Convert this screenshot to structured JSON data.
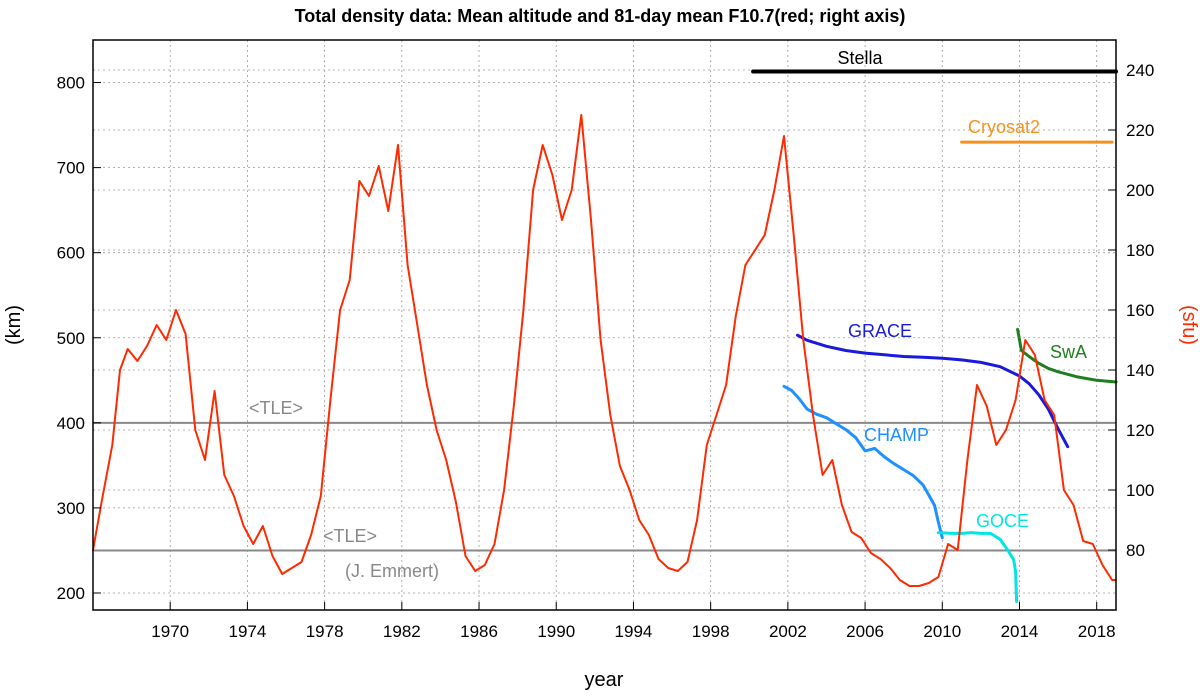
{
  "chart_data": {
    "type": "line",
    "title": "Total density data: Mean altitude and 81-day mean F10.7(red; right axis)",
    "xlabel": "year",
    "ylabel_left": "(km)",
    "ylabel_right": "(sfu)",
    "xlim": [
      1966,
      2019
    ],
    "ylim_left": [
      180,
      850
    ],
    "ylim_right": [
      60,
      250
    ],
    "grid": "dotted",
    "x_ticks": [
      1970,
      1974,
      1978,
      1982,
      1986,
      1990,
      1994,
      1998,
      2002,
      2006,
      2010,
      2014,
      2018
    ],
    "y_left_ticks": [
      200,
      300,
      400,
      500,
      600,
      700,
      800
    ],
    "y_right_ticks": [
      80,
      100,
      120,
      140,
      160,
      180,
      200,
      220,
      240
    ],
    "colors": {
      "f107": "#ff2a00",
      "tle": "#888888",
      "stella": "#000000",
      "cryosat2": "#f5921e",
      "grace": "#1a1adc",
      "champ": "#1e90ff",
      "goce": "#00e5e5",
      "swa": "#1f7f1f"
    },
    "reference_lines": [
      {
        "label": "<TLE>",
        "y": 400
      },
      {
        "label": "<TLE>",
        "sublabel": "(J. Emmert)",
        "y": 250
      }
    ],
    "series": [
      {
        "name": "Stella",
        "axis": "left",
        "x": [
          2000.2,
          2019
        ],
        "y": [
          813,
          813
        ]
      },
      {
        "name": "Cryosat2",
        "axis": "left",
        "x": [
          2011.0,
          2018.8
        ],
        "y": [
          730,
          730
        ]
      },
      {
        "name": "GRACE",
        "axis": "left",
        "x": [
          2002.5,
          2003.0,
          2004.0,
          2005.0,
          2006.0,
          2007.0,
          2008.0,
          2009.0,
          2010.0,
          2011.0,
          2012.0,
          2013.0,
          2014.0,
          2014.5,
          2015.0,
          2015.5,
          2016.0,
          2016.5
        ],
        "y": [
          503,
          497,
          490,
          485,
          482,
          480,
          478,
          477,
          476,
          474,
          471,
          466,
          455,
          446,
          433,
          416,
          393,
          372
        ]
      },
      {
        "name": "CHAMP",
        "axis": "left",
        "x": [
          2001.8,
          2002.2,
          2002.6,
          2003.0,
          2003.5,
          2004.0,
          2004.5,
          2005.0,
          2005.5,
          2006.0,
          2006.5,
          2007.0,
          2007.5,
          2008.0,
          2008.5,
          2009.0,
          2009.3,
          2009.6,
          2009.8,
          2010.0
        ],
        "y": [
          443,
          438,
          428,
          416,
          410,
          406,
          399,
          392,
          383,
          367,
          370,
          360,
          352,
          345,
          338,
          327,
          315,
          303,
          283,
          265
        ]
      },
      {
        "name": "GOCE",
        "axis": "left",
        "x": [
          2009.8,
          2010.5,
          2011.0,
          2011.5,
          2012.0,
          2012.5,
          2013.0,
          2013.4,
          2013.7,
          2013.8,
          2013.85
        ],
        "y": [
          271,
          270,
          270,
          271,
          270,
          270,
          263,
          250,
          239,
          225,
          190
        ]
      },
      {
        "name": "SwA",
        "axis": "left",
        "x": [
          2013.9,
          2014.1,
          2014.5,
          2015.0,
          2015.5,
          2016.0,
          2016.5,
          2017.0,
          2017.5,
          2018.0,
          2018.5,
          2019.0
        ],
        "y": [
          510,
          485,
          478,
          470,
          464,
          460,
          457,
          454,
          452,
          450,
          449,
          448
        ]
      },
      {
        "name": "F10.7",
        "axis": "right",
        "x": [
          1966.0,
          1966.5,
          1967.0,
          1967.4,
          1967.8,
          1968.3,
          1968.8,
          1969.3,
          1969.8,
          1970.3,
          1970.8,
          1971.3,
          1971.8,
          1972.3,
          1972.8,
          1973.3,
          1973.8,
          1974.3,
          1974.8,
          1975.3,
          1975.8,
          1976.3,
          1976.8,
          1977.3,
          1977.8,
          1978.3,
          1978.8,
          1979.3,
          1979.8,
          1980.3,
          1980.8,
          1981.3,
          1981.8,
          1982.3,
          1982.8,
          1983.3,
          1983.8,
          1984.3,
          1984.8,
          1985.3,
          1985.8,
          1986.3,
          1986.8,
          1987.3,
          1987.8,
          1988.3,
          1988.8,
          1989.3,
          1989.8,
          1990.3,
          1990.8,
          1991.3,
          1991.8,
          1992.3,
          1992.8,
          1993.3,
          1993.8,
          1994.3,
          1994.8,
          1995.3,
          1995.8,
          1996.3,
          1996.8,
          1997.3,
          1997.8,
          1998.3,
          1998.8,
          1999.3,
          1999.8,
          2000.3,
          2000.8,
          2001.3,
          2001.8,
          2002.3,
          2002.8,
          2003.3,
          2003.8,
          2004.3,
          2004.8,
          2005.3,
          2005.8,
          2006.3,
          2006.8,
          2007.3,
          2007.8,
          2008.3,
          2008.8,
          2009.3,
          2009.8,
          2010.3,
          2010.8,
          2011.3,
          2011.8,
          2012.3,
          2012.8,
          2013.3,
          2013.8,
          2014.3,
          2014.8,
          2015.3,
          2015.8,
          2016.3,
          2016.8,
          2017.3,
          2017.8,
          2018.3,
          2018.8,
          2019.0
        ],
        "y": [
          80,
          98,
          115,
          140,
          147,
          143,
          148,
          155,
          150,
          160,
          152,
          120,
          110,
          133,
          105,
          98,
          88,
          82,
          88,
          78,
          72,
          74,
          76,
          85,
          98,
          130,
          160,
          170,
          203,
          198,
          208,
          193,
          215,
          175,
          155,
          135,
          120,
          110,
          96,
          78,
          73,
          75,
          82,
          100,
          128,
          160,
          200,
          215,
          205,
          190,
          200,
          225,
          190,
          150,
          125,
          108,
          100,
          90,
          85,
          77,
          74,
          73,
          76,
          90,
          115,
          125,
          135,
          158,
          175,
          180,
          185,
          200,
          218,
          185,
          150,
          125,
          105,
          110,
          95,
          86,
          84,
          79,
          77,
          74,
          70,
          68,
          68,
          69,
          71,
          82,
          80,
          110,
          135,
          128,
          115,
          120,
          130,
          150,
          145,
          130,
          125,
          100,
          95,
          83,
          82,
          75,
          70,
          70
        ]
      }
    ]
  }
}
